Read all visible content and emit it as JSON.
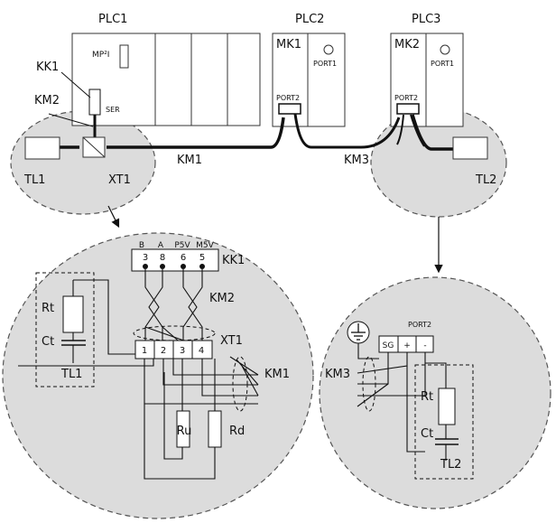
{
  "top": {
    "plc1": "PLC1",
    "plc1_module": "MP²I",
    "ser": "SER",
    "plc2": "PLC2",
    "mk1": "MK1",
    "plc2_port1": "PORT1",
    "plc2_port2": "PORT2",
    "plc3": "PLC3",
    "mk2": "MK2",
    "plc3_port1": "PORT1",
    "plc3_port2": "PORT2",
    "kk1": "KK1",
    "km2": "KM2",
    "tl1": "TL1",
    "xt1": "XT1",
    "km1": "KM1",
    "km3": "KM3",
    "tl2": "TL2"
  },
  "detail_left": {
    "connector_label": "KK1",
    "pin_names": [
      "B",
      "A",
      "P5V",
      "M5V"
    ],
    "pin_numbers": [
      "3",
      "8",
      "6",
      "5"
    ],
    "twisted_label": "KM2",
    "rt": "Rt",
    "ct": "Ct",
    "tl1": "TL1",
    "xt1": "XT1",
    "terminals": [
      "1",
      "2",
      "3",
      "4"
    ],
    "km1": "KM1",
    "ru": "Ru",
    "rd": "Rd"
  },
  "detail_right": {
    "port_label": "PORT2",
    "sg": "SG",
    "plus": "+",
    "minus": "-",
    "km3": "KM3",
    "rt": "Rt",
    "ct": "Ct",
    "tl2": "TL2"
  },
  "colors": {
    "zone_fill": "#dcdcdc",
    "zone_stroke": "#555555",
    "line": "#111111"
  }
}
